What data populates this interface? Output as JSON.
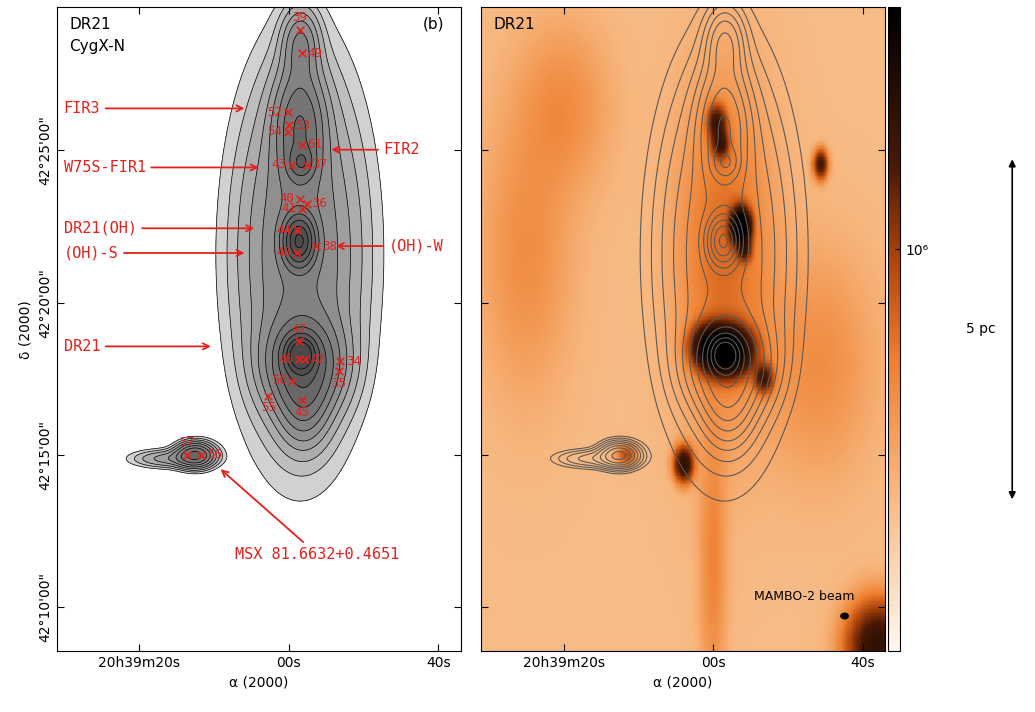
{
  "chart_data": [
    {
      "type": "contour",
      "labels": [
        "DR21",
        "CygX-N"
      ],
      "panel_label": "(b)",
      "xlabel": "α (2000)",
      "ylabel": "δ (2000)",
      "xlim": [
        74371,
        74317
      ],
      "ylim": [
        42.1425,
        42.495
      ],
      "xticks": [
        {
          "value": 74360,
          "label": "20h39m20s"
        },
        {
          "value": 74340,
          "label": "00s"
        },
        {
          "value": 74320,
          "label": "40s"
        }
      ],
      "yticks": [
        {
          "value": 42.166667,
          "label": "42°10'00\""
        },
        {
          "value": 42.25,
          "label": "42°15'00\""
        },
        {
          "value": 42.333333,
          "label": "42°20'00\""
        },
        {
          "value": 42.416667,
          "label": "42°25'00\""
        }
      ],
      "tick_labels": true,
      "color": "#e3201b",
      "marker": "x",
      "levels": [
        0.08,
        0.15,
        0.25,
        0.4,
        0.6,
        0.9,
        1.3,
        1.9,
        2.8,
        4,
        5.5
      ],
      "components": [
        {
          "ra": 74338.5,
          "dec": 42.36,
          "amp": 1.0,
          "sig_ra": 5.0,
          "sig_dec": 0.06
        },
        {
          "ra": 74338.4,
          "dec": 42.305,
          "amp": 6.0,
          "sig_ra": 1.2,
          "sig_dec": 0.006
        },
        {
          "ra": 74338.6,
          "dec": 42.367,
          "amp": 5.0,
          "sig_ra": 1.2,
          "sig_dec": 0.008
        },
        {
          "ra": 74338.5,
          "dec": 42.43,
          "amp": 1.5,
          "sig_ra": 2.0,
          "sig_dec": 0.02
        },
        {
          "ra": 74338.3,
          "dec": 42.41,
          "amp": 1.5,
          "sig_ra": 1.0,
          "sig_dec": 0.005
        },
        {
          "ra": 74338.4,
          "dec": 42.475,
          "amp": 0.8,
          "sig_ra": 1.5,
          "sig_dec": 0.012
        },
        {
          "ra": 74352.5,
          "dec": 42.25,
          "amp": 2.0,
          "sig_ra": 1.5,
          "sig_dec": 0.004
        },
        {
          "ra": 74356.0,
          "dec": 42.248,
          "amp": 0.5,
          "sig_ra": 3.0,
          "sig_dec": 0.003
        },
        {
          "ra": 74338.0,
          "dec": 42.28,
          "amp": 1.0,
          "sig_ra": 2.0,
          "sig_dec": 0.015
        },
        {
          "ra": 74338.0,
          "dec": 42.3,
          "amp": 2.0,
          "sig_ra": 3.0,
          "sig_dec": 0.015
        }
      ],
      "sources": [
        {
          "name": "39",
          "ra": 74338.5,
          "dec": 42.4826,
          "label_side": "above"
        },
        {
          "name": "49",
          "ra": 74338.2,
          "dec": 42.4697,
          "label_side": "right"
        },
        {
          "name": "52",
          "ra": 74340.1,
          "dec": 42.4374,
          "label_side": "left"
        },
        {
          "name": "53",
          "ra": 74339.9,
          "dec": 42.4304,
          "label_side": "right"
        },
        {
          "name": "54",
          "ra": 74340.1,
          "dec": 42.4267,
          "label_side": "left"
        },
        {
          "name": "61",
          "ra": 74338.2,
          "dec": 42.4197,
          "label_side": "right"
        },
        {
          "name": "43",
          "ra": 74339.5,
          "dec": 42.4089,
          "label_side": "left"
        },
        {
          "name": "37",
          "ra": 74337.6,
          "dec": 42.4089,
          "label_side": "right"
        },
        {
          "name": "40",
          "ra": 74338.5,
          "dec": 42.3901,
          "label_side": "left"
        },
        {
          "name": "41",
          "ra": 74338.2,
          "dec": 42.3847,
          "label_side": "left"
        },
        {
          "name": "36",
          "ra": 74337.6,
          "dec": 42.3874,
          "label_side": "right"
        },
        {
          "name": "44",
          "ra": 74338.85,
          "dec": 42.3729,
          "label_side": "left"
        },
        {
          "name": "38",
          "ra": 74336.3,
          "dec": 42.3643,
          "label_side": "right"
        },
        {
          "name": "48",
          "ra": 74338.85,
          "dec": 42.3605,
          "label_side": "left"
        },
        {
          "name": "47",
          "ra": 74338.6,
          "dec": 42.3121,
          "label_side": "above"
        },
        {
          "name": "46",
          "ra": 74338.6,
          "dec": 42.3024,
          "label_side": "left"
        },
        {
          "name": "42",
          "ra": 74337.8,
          "dec": 42.3024,
          "label_side": "right"
        },
        {
          "name": "34",
          "ra": 74333.1,
          "dec": 42.3013,
          "label_side": "right"
        },
        {
          "name": "50",
          "ra": 74339.5,
          "dec": 42.2906,
          "label_side": "left"
        },
        {
          "name": "35",
          "ra": 74333.3,
          "dec": 42.2959,
          "label_side": "below"
        },
        {
          "name": "55",
          "ra": 74342.7,
          "dec": 42.2825,
          "label_side": "below"
        },
        {
          "name": "45",
          "ra": 74338.2,
          "dec": 42.2798,
          "label_side": "below"
        },
        {
          "name": "57",
          "ra": 74353.6,
          "dec": 42.2502,
          "label_side": "above"
        },
        {
          "name": "56",
          "ra": 74351.7,
          "dec": 42.2502,
          "label_side": "right"
        }
      ],
      "annotations": [
        {
          "text": "FIR3",
          "text_ra": 74370.1,
          "text_dec": 42.4396,
          "ra": 74345.9,
          "dec": 42.4396
        },
        {
          "text": "W75S-FIR1",
          "text_ra": 74370.1,
          "text_dec": 42.4073,
          "ra": 74344.0,
          "dec": 42.4073
        },
        {
          "text": "DR21(OH)",
          "text_ra": 74370.1,
          "text_dec": 42.374,
          "ra": 74344.6,
          "dec": 42.374
        },
        {
          "text": "(OH)-S",
          "text_ra": 74370.1,
          "text_dec": 42.3605,
          "ra": 74345.9,
          "dec": 42.3605
        },
        {
          "text": "DR21",
          "text_ra": 74370.1,
          "text_dec": 42.3094,
          "ra": 74350.4,
          "dec": 42.3094
        },
        {
          "text": "FIR2",
          "text_ra": 74327.3,
          "text_dec": 42.417,
          "ra": 74334.3,
          "dec": 42.417
        },
        {
          "text": "(OH)-W",
          "text_ra": 74326.6,
          "text_dec": 42.3643,
          "ra": 74333.7,
          "dec": 42.3643
        },
        {
          "text": "MSX 81.6632+0.4651",
          "text_ra": 74347.2,
          "text_dec": 42.1957,
          "ra": 74349.1,
          "dec": 42.2422
        }
      ]
    },
    {
      "type": "image",
      "labels": [
        "DR21"
      ],
      "xlabel": "α (2000)",
      "xlim": [
        74371,
        74317
      ],
      "ylim": [
        42.1425,
        42.495
      ],
      "xticks": [
        {
          "value": 74360,
          "label": "20h39m20s"
        },
        {
          "value": 74340,
          "label": "00s"
        },
        {
          "value": 74320,
          "label": "40s"
        }
      ],
      "yticks": [
        {
          "value": 42.166667,
          "label": "42°10'00\""
        },
        {
          "value": 42.25,
          "label": "42°15'00\""
        },
        {
          "value": 42.333333,
          "label": "42°20'00\""
        },
        {
          "value": 42.416667,
          "label": "42°25'00\""
        }
      ],
      "tick_labels": "x",
      "baseline": 240000,
      "components": [
        {
          "ra": 74338.5,
          "dec": 42.36,
          "amp": 400000,
          "sig_ra": 4.0,
          "sig_dec": 0.06
        },
        {
          "ra": 74338.2,
          "dec": 42.307,
          "amp": 5000000,
          "sig_ra": 2.0,
          "sig_dec": 0.008
        },
        {
          "ra": 74340.5,
          "dec": 42.31,
          "amp": 2000000,
          "sig_ra": 1.5,
          "sig_dec": 0.007
        },
        {
          "ra": 74333.2,
          "dec": 42.292,
          "amp": 1500000,
          "sig_ra": 0.8,
          "sig_dec": 0.005
        },
        {
          "ra": 74336.3,
          "dec": 42.375,
          "amp": 5000000,
          "sig_ra": 0.8,
          "sig_dec": 0.006
        },
        {
          "ra": 74335.8,
          "dec": 42.362,
          "amp": 1200000,
          "sig_ra": 0.6,
          "sig_dec": 0.004
        },
        {
          "ra": 74339.5,
          "dec": 42.432,
          "amp": 1500000,
          "sig_ra": 0.8,
          "sig_dec": 0.006
        },
        {
          "ra": 74339.0,
          "dec": 42.42,
          "amp": 1500000,
          "sig_ra": 0.7,
          "sig_dec": 0.005
        },
        {
          "ra": 74325.6,
          "dec": 42.409,
          "amp": 1500000,
          "sig_ra": 0.6,
          "sig_dec": 0.005
        },
        {
          "ra": 74343.9,
          "dec": 42.245,
          "amp": 2000000,
          "sig_ra": 0.8,
          "sig_dec": 0.006
        },
        {
          "ra": 74351.5,
          "dec": 42.25,
          "amp": 600000,
          "sig_ra": 0.9,
          "sig_dec": 0.004
        },
        {
          "ra": 74340.0,
          "dec": 42.19,
          "amp": 250000,
          "sig_ra": 1.2,
          "sig_dec": 0.05
        },
        {
          "ra": 74360.0,
          "dec": 42.44,
          "amp": 200000,
          "sig_ra": 4.0,
          "sig_dec": 0.03
        },
        {
          "ra": 74318.0,
          "dec": 42.145,
          "amp": 2000000,
          "sig_ra": 2.5,
          "sig_dec": 0.015
        },
        {
          "ra": 74326.0,
          "dec": 42.3,
          "amp": 200000,
          "sig_ra": 5.0,
          "sig_dec": 0.04
        },
        {
          "ra": 74365.0,
          "dec": 42.36,
          "amp": 200000,
          "sig_ra": 4.0,
          "sig_dec": 0.05
        }
      ],
      "colorbar": {
        "range": [
          100000,
          4000000
        ],
        "ticks": [
          {
            "value": 1000000,
            "label": "10⁶"
          }
        ],
        "log": true
      },
      "beam": {
        "label": "MAMBO-2 beam",
        "diameter_arcsec": 11
      },
      "scalebar": {
        "label": "5 pc",
        "length_deg": 0.186
      }
    }
  ]
}
